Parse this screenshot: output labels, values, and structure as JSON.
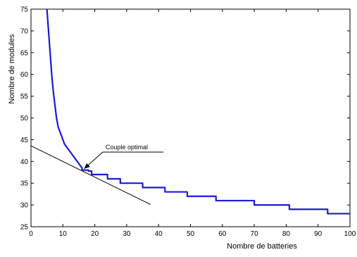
{
  "chart_data": {
    "type": "line",
    "xlabel": "Nombre de batteries",
    "ylabel": "Nombre de modules",
    "xlim": [
      0,
      100
    ],
    "ylim": [
      25,
      75
    ],
    "xticks": [
      0,
      10,
      20,
      30,
      40,
      50,
      60,
      70,
      80,
      90,
      100
    ],
    "yticks": [
      25,
      30,
      35,
      40,
      45,
      50,
      55,
      60,
      65,
      70,
      75
    ],
    "grid": false,
    "series": [
      {
        "color": "#1a1adb",
        "points": [
          [
            5,
            75
          ],
          [
            5.5,
            70
          ],
          [
            6,
            65
          ],
          [
            6.5,
            60
          ],
          [
            7,
            56
          ],
          [
            7.5,
            53
          ],
          [
            8,
            50
          ],
          [
            8.5,
            48
          ],
          [
            9,
            47
          ],
          [
            9.5,
            46
          ],
          [
            10,
            45
          ],
          [
            10.5,
            44
          ],
          [
            11,
            43.5
          ],
          [
            12,
            42.5
          ],
          [
            13,
            41.5
          ],
          [
            14,
            40.5
          ],
          [
            15,
            39.5
          ],
          [
            16,
            38.5
          ],
          [
            16,
            38
          ],
          [
            18,
            38
          ],
          [
            18,
            37.8
          ],
          [
            19,
            37.8
          ],
          [
            19,
            37
          ],
          [
            24,
            37
          ],
          [
            24,
            36
          ],
          [
            28,
            36
          ],
          [
            28,
            35
          ],
          [
            35,
            35
          ],
          [
            35,
            34
          ],
          [
            42,
            34
          ],
          [
            42,
            33
          ],
          [
            49,
            33
          ],
          [
            49,
            32
          ],
          [
            58,
            32
          ],
          [
            58,
            31
          ],
          [
            70,
            31
          ],
          [
            70,
            30
          ],
          [
            81,
            30
          ],
          [
            81,
            29
          ],
          [
            93,
            29
          ],
          [
            93,
            28
          ],
          [
            100,
            28
          ]
        ]
      }
    ],
    "tangent_line": {
      "color": "#000000",
      "points": [
        [
          0,
          43.6
        ],
        [
          37.5,
          30.1
        ]
      ]
    },
    "annotations": [
      {
        "text": "Couple optimal",
        "point": [
          16,
          38
        ]
      }
    ]
  }
}
